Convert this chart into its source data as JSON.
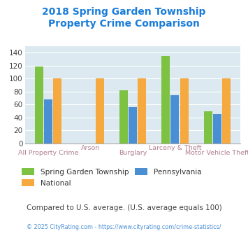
{
  "title": "2018 Spring Garden Township\nProperty Crime Comparison",
  "title_color": "#1a7cd9",
  "categories": [
    "All Property Crime",
    "Arson",
    "Burglary",
    "Larceny & Theft",
    "Motor Vehicle Theft"
  ],
  "series_order": [
    "Spring Garden Township",
    "Pennsylvania",
    "National"
  ],
  "series": {
    "Spring Garden Township": [
      119,
      0,
      82,
      135,
      49
    ],
    "National": [
      100,
      100,
      100,
      100,
      100
    ],
    "Pennsylvania": [
      68,
      0,
      56,
      74,
      45
    ]
  },
  "colors": {
    "Spring Garden Township": "#7dc242",
    "National": "#f5a93f",
    "Pennsylvania": "#4a8fd4"
  },
  "ylim": [
    0,
    150
  ],
  "yticks": [
    0,
    20,
    40,
    60,
    80,
    100,
    120,
    140
  ],
  "plot_bg": "#dce9f0",
  "grid_color": "#ffffff",
  "xlabel_color": "#b08090",
  "note": "Compared to U.S. average. (U.S. average equals 100)",
  "note_color": "#444444",
  "footer": "© 2025 CityRating.com - https://www.cityrating.com/crime-statistics/",
  "footer_color": "#4a8fd4",
  "legend_label_color": "#333333"
}
